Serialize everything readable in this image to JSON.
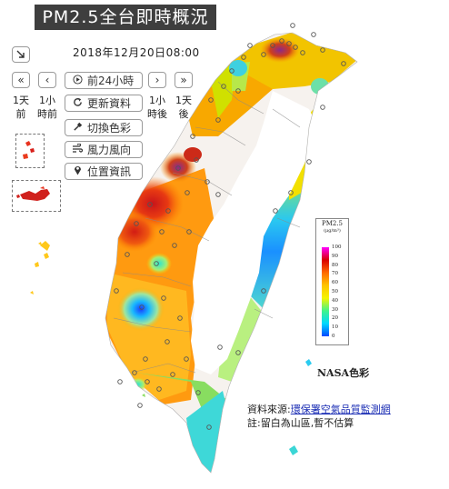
{
  "title": "PM2.5全台即時概況",
  "timestamp": "2018年12月20日08:00",
  "controls": {
    "collapse_icon": "arrow-down-right-icon",
    "back_1day": {
      "icon": "«",
      "label1": "1天",
      "label2": "前"
    },
    "back_1hour": {
      "icon": "‹",
      "label1": "1小",
      "label2": "時前"
    },
    "fwd_1hour": {
      "icon": "›",
      "label1": "1小",
      "label2": "時後"
    },
    "fwd_1day": {
      "icon": "»",
      "label1": "1天",
      "label2": "後"
    },
    "play_24h": {
      "icon": "play-circle-icon",
      "label": "前24小時"
    },
    "refresh": {
      "icon": "refresh-icon",
      "label": "更新資料"
    },
    "color_scheme": {
      "icon": "eyedropper-icon",
      "label": "切換色彩"
    },
    "wind": {
      "icon": "wind-icon",
      "label": "風力風向"
    },
    "location": {
      "icon": "map-marker-icon",
      "label": "位置資訊"
    }
  },
  "legend": {
    "title": "PM2.5",
    "unit": "(μg/m³)",
    "ticks": [
      "100",
      "90",
      "80",
      "70",
      "60",
      "50",
      "40",
      "30",
      "20",
      "10",
      "0"
    ],
    "scheme_label": "NASA色彩",
    "colors": [
      "#ff00ff",
      "#d90000",
      "#ff6a00",
      "#ffc400",
      "#f4f400",
      "#41f48a",
      "#00d8ff",
      "#0048ff"
    ]
  },
  "source": {
    "prefix": "資料來源:",
    "link": "環保署空氣品質監測網",
    "note": "註:留白為山區,暫不估算"
  }
}
